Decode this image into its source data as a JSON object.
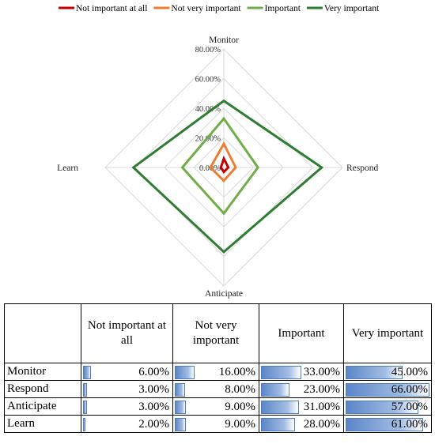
{
  "chart_data": {
    "type": "radar",
    "axes": [
      "Monitor",
      "Respond",
      "Anticipate",
      "Learn"
    ],
    "range": [
      0,
      80
    ],
    "tick_labels": [
      "0.00%",
      "20.00%",
      "40.00%",
      "60.00%",
      "80.00%"
    ],
    "legend_position": "top",
    "series": [
      {
        "name": "Not important at all",
        "color": "#c00000",
        "values": [
          6,
          3,
          3,
          2
        ]
      },
      {
        "name": "Not very important",
        "color": "#ed7d31",
        "values": [
          16,
          8,
          9,
          9
        ]
      },
      {
        "name": "Important",
        "color": "#70ad47",
        "values": [
          33,
          23,
          31,
          28
        ]
      },
      {
        "name": "Very important",
        "color": "#2e7d32",
        "values": [
          45,
          66,
          57,
          61
        ]
      }
    ]
  },
  "table": {
    "headers": [
      "",
      "Not important at all",
      "Not very important",
      "Important",
      "Very important"
    ],
    "rows": [
      {
        "label": "Monitor",
        "values": [
          "6.00%",
          "16.00%",
          "33.00%",
          "45.00%"
        ],
        "fractions": [
          0.06,
          0.16,
          0.33,
          0.45
        ]
      },
      {
        "label": "Respond",
        "values": [
          "3.00%",
          "8.00%",
          "23.00%",
          "66.00%"
        ],
        "fractions": [
          0.03,
          0.08,
          0.23,
          0.66
        ]
      },
      {
        "label": "Anticipate",
        "values": [
          "3.00%",
          "9.00%",
          "31.00%",
          "57.00%"
        ],
        "fractions": [
          0.03,
          0.09,
          0.31,
          0.57
        ]
      },
      {
        "label": "Learn",
        "values": [
          "2.00%",
          "9.00%",
          "28.00%",
          "61.00%"
        ],
        "fractions": [
          0.02,
          0.09,
          0.28,
          0.61
        ]
      }
    ]
  }
}
